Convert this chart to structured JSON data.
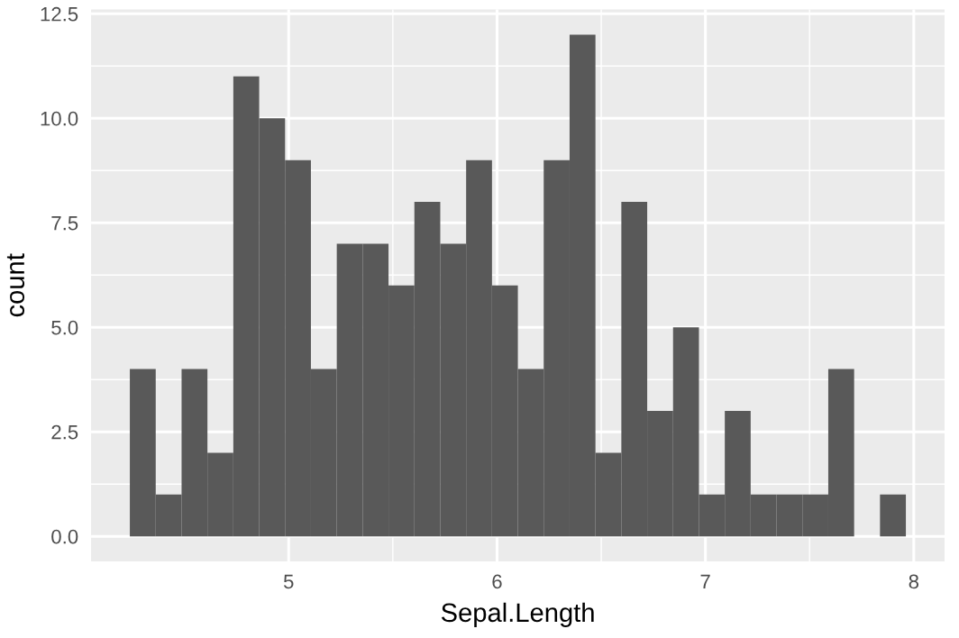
{
  "chart_data": {
    "type": "histogram",
    "xlabel": "Sepal.Length",
    "ylabel": "count",
    "color": "#595959",
    "bins": [
      4.2379,
      4.3621,
      4.4862,
      4.6103,
      4.7345,
      4.8586,
      4.9828,
      5.1069,
      5.231,
      5.3552,
      5.4793,
      5.6034,
      5.7276,
      5.8517,
      5.9759,
      6.1,
      6.2241,
      6.3483,
      6.4724,
      6.5966,
      6.7207,
      6.8448,
      6.969,
      7.0931,
      7.2172,
      7.3414,
      7.4655,
      7.5897,
      7.7138,
      7.8379,
      7.9621
    ],
    "values": [
      4,
      1,
      4,
      2,
      11,
      10,
      9,
      4,
      7,
      7,
      6,
      8,
      7,
      9,
      6,
      4,
      9,
      12,
      2,
      8,
      3,
      5,
      1,
      3,
      1,
      1,
      1,
      4,
      0,
      1
    ],
    "xlim": [
      4.052,
      8.148
    ],
    "xticks": [
      5,
      6,
      7,
      8
    ],
    "ylim": [
      -0.6,
      12.6
    ],
    "yticks": [
      {
        "value": 0,
        "label": "0.0"
      },
      {
        "value": 2.5,
        "label": "2.5"
      },
      {
        "value": 5,
        "label": "5.0"
      },
      {
        "value": 7.5,
        "label": "7.5"
      },
      {
        "value": 10,
        "label": "10.0"
      },
      {
        "value": 12.5,
        "label": "12.5"
      }
    ],
    "grid": true,
    "legend": false
  }
}
